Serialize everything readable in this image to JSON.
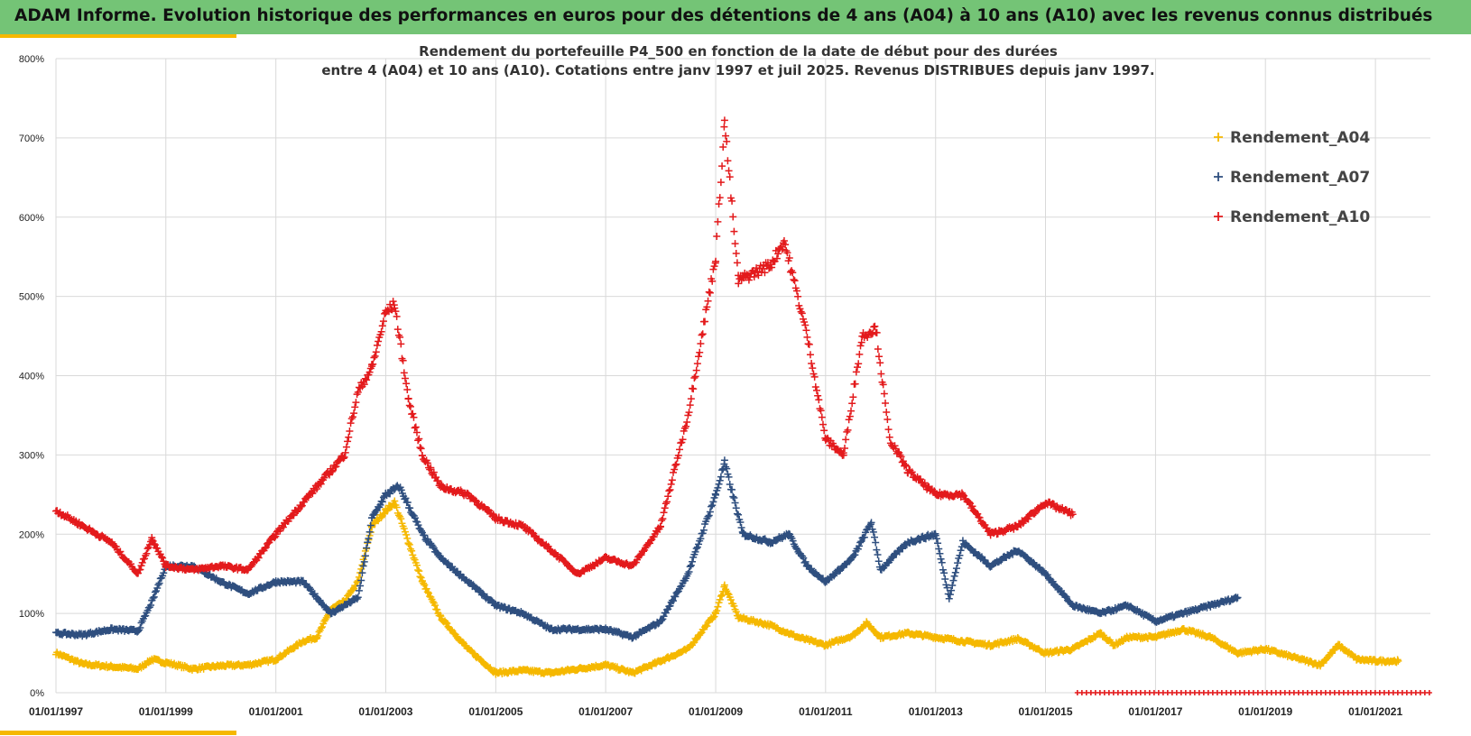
{
  "banner": {
    "title": "ADAM Informe. Evolution historique des performances en euros pour des détentions de 4 ans (A04) à 10 ans (A10) avec les revenus connus distribués"
  },
  "colors": {
    "banner_bg": "#74c476",
    "accent": "#f5b800",
    "A04": "#f5b800",
    "A07": "#2f4f7f",
    "A10": "#e31a1c",
    "grid": "#d9d9d9"
  },
  "chart_data": {
    "type": "scatter",
    "marker": "plus",
    "title_line1": "Rendement du portefeuille P4_500 en fonction de la date de début pour des durées",
    "title_line2": "entre 4 (A04) et 10 ans (A10). Cotations entre janv 1997 et juil 2025. Revenus DISTRIBUES depuis janv 1997.",
    "xlabel": "",
    "ylabel": "",
    "xlim": [
      "1997-01-01",
      "2022-01-01"
    ],
    "ylim": [
      0,
      8
    ],
    "y_format": "percent",
    "grid": true,
    "legend_position": "top-right",
    "x_ticks": [
      "01/01/1997",
      "01/01/1999",
      "01/01/2001",
      "01/01/2003",
      "01/01/2005",
      "01/01/2007",
      "01/01/2009",
      "01/01/2011",
      "01/01/2013",
      "01/01/2015",
      "01/01/2017",
      "01/01/2019",
      "01/01/2021"
    ],
    "y_ticks": [
      "0%",
      "100%",
      "200%",
      "300%",
      "400%",
      "500%",
      "600%",
      "700%",
      "800%"
    ],
    "series": [
      {
        "name": "Rendement_A04",
        "color": "#f5b800",
        "points": [
          [
            "1997-01-01",
            0.5
          ],
          [
            "1997-07-01",
            0.36
          ],
          [
            "1998-01-01",
            0.33
          ],
          [
            "1998-07-01",
            0.3
          ],
          [
            "1998-10-01",
            0.42
          ],
          [
            "1999-01-01",
            0.38
          ],
          [
            "1999-07-01",
            0.3
          ],
          [
            "2000-01-01",
            0.34
          ],
          [
            "2000-07-01",
            0.35
          ],
          [
            "2001-01-01",
            0.42
          ],
          [
            "2001-07-01",
            0.65
          ],
          [
            "2001-10-01",
            0.7
          ],
          [
            "2002-01-01",
            1.05
          ],
          [
            "2002-04-01",
            1.15
          ],
          [
            "2002-07-01",
            1.4
          ],
          [
            "2002-10-01",
            2.1
          ],
          [
            "2003-01-01",
            2.3
          ],
          [
            "2003-03-01",
            2.4
          ],
          [
            "2003-06-01",
            1.9
          ],
          [
            "2003-09-01",
            1.4
          ],
          [
            "2004-01-01",
            0.95
          ],
          [
            "2004-07-01",
            0.55
          ],
          [
            "2005-01-01",
            0.25
          ],
          [
            "2005-07-01",
            0.28
          ],
          [
            "2006-01-01",
            0.25
          ],
          [
            "2006-07-01",
            0.3
          ],
          [
            "2007-01-01",
            0.35
          ],
          [
            "2007-07-01",
            0.25
          ],
          [
            "2008-01-01",
            0.4
          ],
          [
            "2008-07-01",
            0.55
          ],
          [
            "2009-01-01",
            1.0
          ],
          [
            "2009-03-01",
            1.35
          ],
          [
            "2009-06-01",
            0.95
          ],
          [
            "2010-01-01",
            0.85
          ],
          [
            "2010-07-01",
            0.7
          ],
          [
            "2011-01-01",
            0.6
          ],
          [
            "2011-07-01",
            0.72
          ],
          [
            "2011-10-01",
            0.88
          ],
          [
            "2012-01-01",
            0.7
          ],
          [
            "2012-07-01",
            0.75
          ],
          [
            "2013-01-01",
            0.7
          ],
          [
            "2013-07-01",
            0.65
          ],
          [
            "2014-01-01",
            0.6
          ],
          [
            "2014-07-01",
            0.68
          ],
          [
            "2015-01-01",
            0.5
          ],
          [
            "2015-07-01",
            0.55
          ],
          [
            "2016-01-01",
            0.75
          ],
          [
            "2016-04-01",
            0.6
          ],
          [
            "2016-07-01",
            0.7
          ],
          [
            "2017-01-01",
            0.7
          ],
          [
            "2017-07-01",
            0.8
          ],
          [
            "2018-01-01",
            0.7
          ],
          [
            "2018-07-01",
            0.5
          ],
          [
            "2019-01-01",
            0.55
          ],
          [
            "2019-07-01",
            0.45
          ],
          [
            "2020-01-01",
            0.35
          ],
          [
            "2020-05-01",
            0.6
          ],
          [
            "2020-09-01",
            0.42
          ],
          [
            "2021-01-01",
            0.4
          ],
          [
            "2021-06-01",
            0.4
          ]
        ]
      },
      {
        "name": "Rendement_A07",
        "color": "#2f4f7f",
        "points": [
          [
            "1997-01-01",
            0.75
          ],
          [
            "1997-07-01",
            0.73
          ],
          [
            "1998-01-01",
            0.8
          ],
          [
            "1998-07-01",
            0.78
          ],
          [
            "1998-10-01",
            1.15
          ],
          [
            "1999-01-01",
            1.6
          ],
          [
            "1999-07-01",
            1.6
          ],
          [
            "2000-01-01",
            1.4
          ],
          [
            "2000-07-01",
            1.25
          ],
          [
            "2001-01-01",
            1.4
          ],
          [
            "2001-07-01",
            1.4
          ],
          [
            "2002-01-01",
            1.0
          ],
          [
            "2002-07-01",
            1.2
          ],
          [
            "2002-10-01",
            2.2
          ],
          [
            "2003-01-01",
            2.5
          ],
          [
            "2003-04-01",
            2.6
          ],
          [
            "2003-09-01",
            2.0
          ],
          [
            "2004-01-01",
            1.7
          ],
          [
            "2004-07-01",
            1.4
          ],
          [
            "2005-01-01",
            1.1
          ],
          [
            "2005-07-01",
            1.0
          ],
          [
            "2006-01-01",
            0.8
          ],
          [
            "2006-07-01",
            0.8
          ],
          [
            "2007-01-01",
            0.8
          ],
          [
            "2007-07-01",
            0.7
          ],
          [
            "2008-01-01",
            0.9
          ],
          [
            "2008-07-01",
            1.5
          ],
          [
            "2009-01-01",
            2.5
          ],
          [
            "2009-03-01",
            2.9
          ],
          [
            "2009-07-01",
            2.0
          ],
          [
            "2010-01-01",
            1.9
          ],
          [
            "2010-05-01",
            2.0
          ],
          [
            "2010-09-01",
            1.6
          ],
          [
            "2011-01-01",
            1.4
          ],
          [
            "2011-07-01",
            1.7
          ],
          [
            "2011-11-01",
            2.15
          ],
          [
            "2012-01-01",
            1.55
          ],
          [
            "2012-07-01",
            1.9
          ],
          [
            "2013-01-01",
            2.0
          ],
          [
            "2013-04-01",
            1.2
          ],
          [
            "2013-07-01",
            1.9
          ],
          [
            "2014-01-01",
            1.6
          ],
          [
            "2014-07-01",
            1.8
          ],
          [
            "2015-01-01",
            1.5
          ],
          [
            "2015-07-01",
            1.1
          ],
          [
            "2016-01-01",
            1.0
          ],
          [
            "2016-07-01",
            1.1
          ],
          [
            "2017-01-01",
            0.9
          ],
          [
            "2017-07-01",
            1.0
          ],
          [
            "2018-01-01",
            1.1
          ],
          [
            "2018-07-01",
            1.2
          ]
        ]
      },
      {
        "name": "Rendement_A10",
        "color": "#e31a1c",
        "points": [
          [
            "1997-01-01",
            2.3
          ],
          [
            "1997-07-01",
            2.1
          ],
          [
            "1998-01-01",
            1.9
          ],
          [
            "1998-07-01",
            1.5
          ],
          [
            "1998-10-01",
            1.95
          ],
          [
            "1999-01-01",
            1.6
          ],
          [
            "1999-07-01",
            1.55
          ],
          [
            "2000-01-01",
            1.6
          ],
          [
            "2000-07-01",
            1.55
          ],
          [
            "2001-01-01",
            2.0
          ],
          [
            "2001-07-01",
            2.4
          ],
          [
            "2002-01-01",
            2.8
          ],
          [
            "2002-04-01",
            3.0
          ],
          [
            "2002-07-01",
            3.8
          ],
          [
            "2002-10-01",
            4.1
          ],
          [
            "2003-01-01",
            4.8
          ],
          [
            "2003-03-01",
            4.9
          ],
          [
            "2003-06-01",
            3.7
          ],
          [
            "2003-09-01",
            3.0
          ],
          [
            "2004-01-01",
            2.6
          ],
          [
            "2004-07-01",
            2.5
          ],
          [
            "2005-01-01",
            2.2
          ],
          [
            "2005-07-01",
            2.1
          ],
          [
            "2006-01-01",
            1.8
          ],
          [
            "2006-07-01",
            1.5
          ],
          [
            "2007-01-01",
            1.7
          ],
          [
            "2007-07-01",
            1.6
          ],
          [
            "2008-01-01",
            2.1
          ],
          [
            "2008-07-01",
            3.5
          ],
          [
            "2009-01-01",
            5.5
          ],
          [
            "2009-03-01",
            7.2
          ],
          [
            "2009-06-01",
            5.2
          ],
          [
            "2010-01-01",
            5.4
          ],
          [
            "2010-04-01",
            5.7
          ],
          [
            "2010-09-01",
            4.5
          ],
          [
            "2011-01-01",
            3.2
          ],
          [
            "2011-05-01",
            3.0
          ],
          [
            "2011-09-01",
            4.5
          ],
          [
            "2011-12-01",
            4.6
          ],
          [
            "2012-03-01",
            3.2
          ],
          [
            "2012-07-01",
            2.8
          ],
          [
            "2013-01-01",
            2.5
          ],
          [
            "2013-07-01",
            2.5
          ],
          [
            "2014-01-01",
            2.0
          ],
          [
            "2014-07-01",
            2.1
          ],
          [
            "2015-01-01",
            2.4
          ],
          [
            "2015-07-01",
            2.25
          ]
        ]
      }
    ]
  }
}
